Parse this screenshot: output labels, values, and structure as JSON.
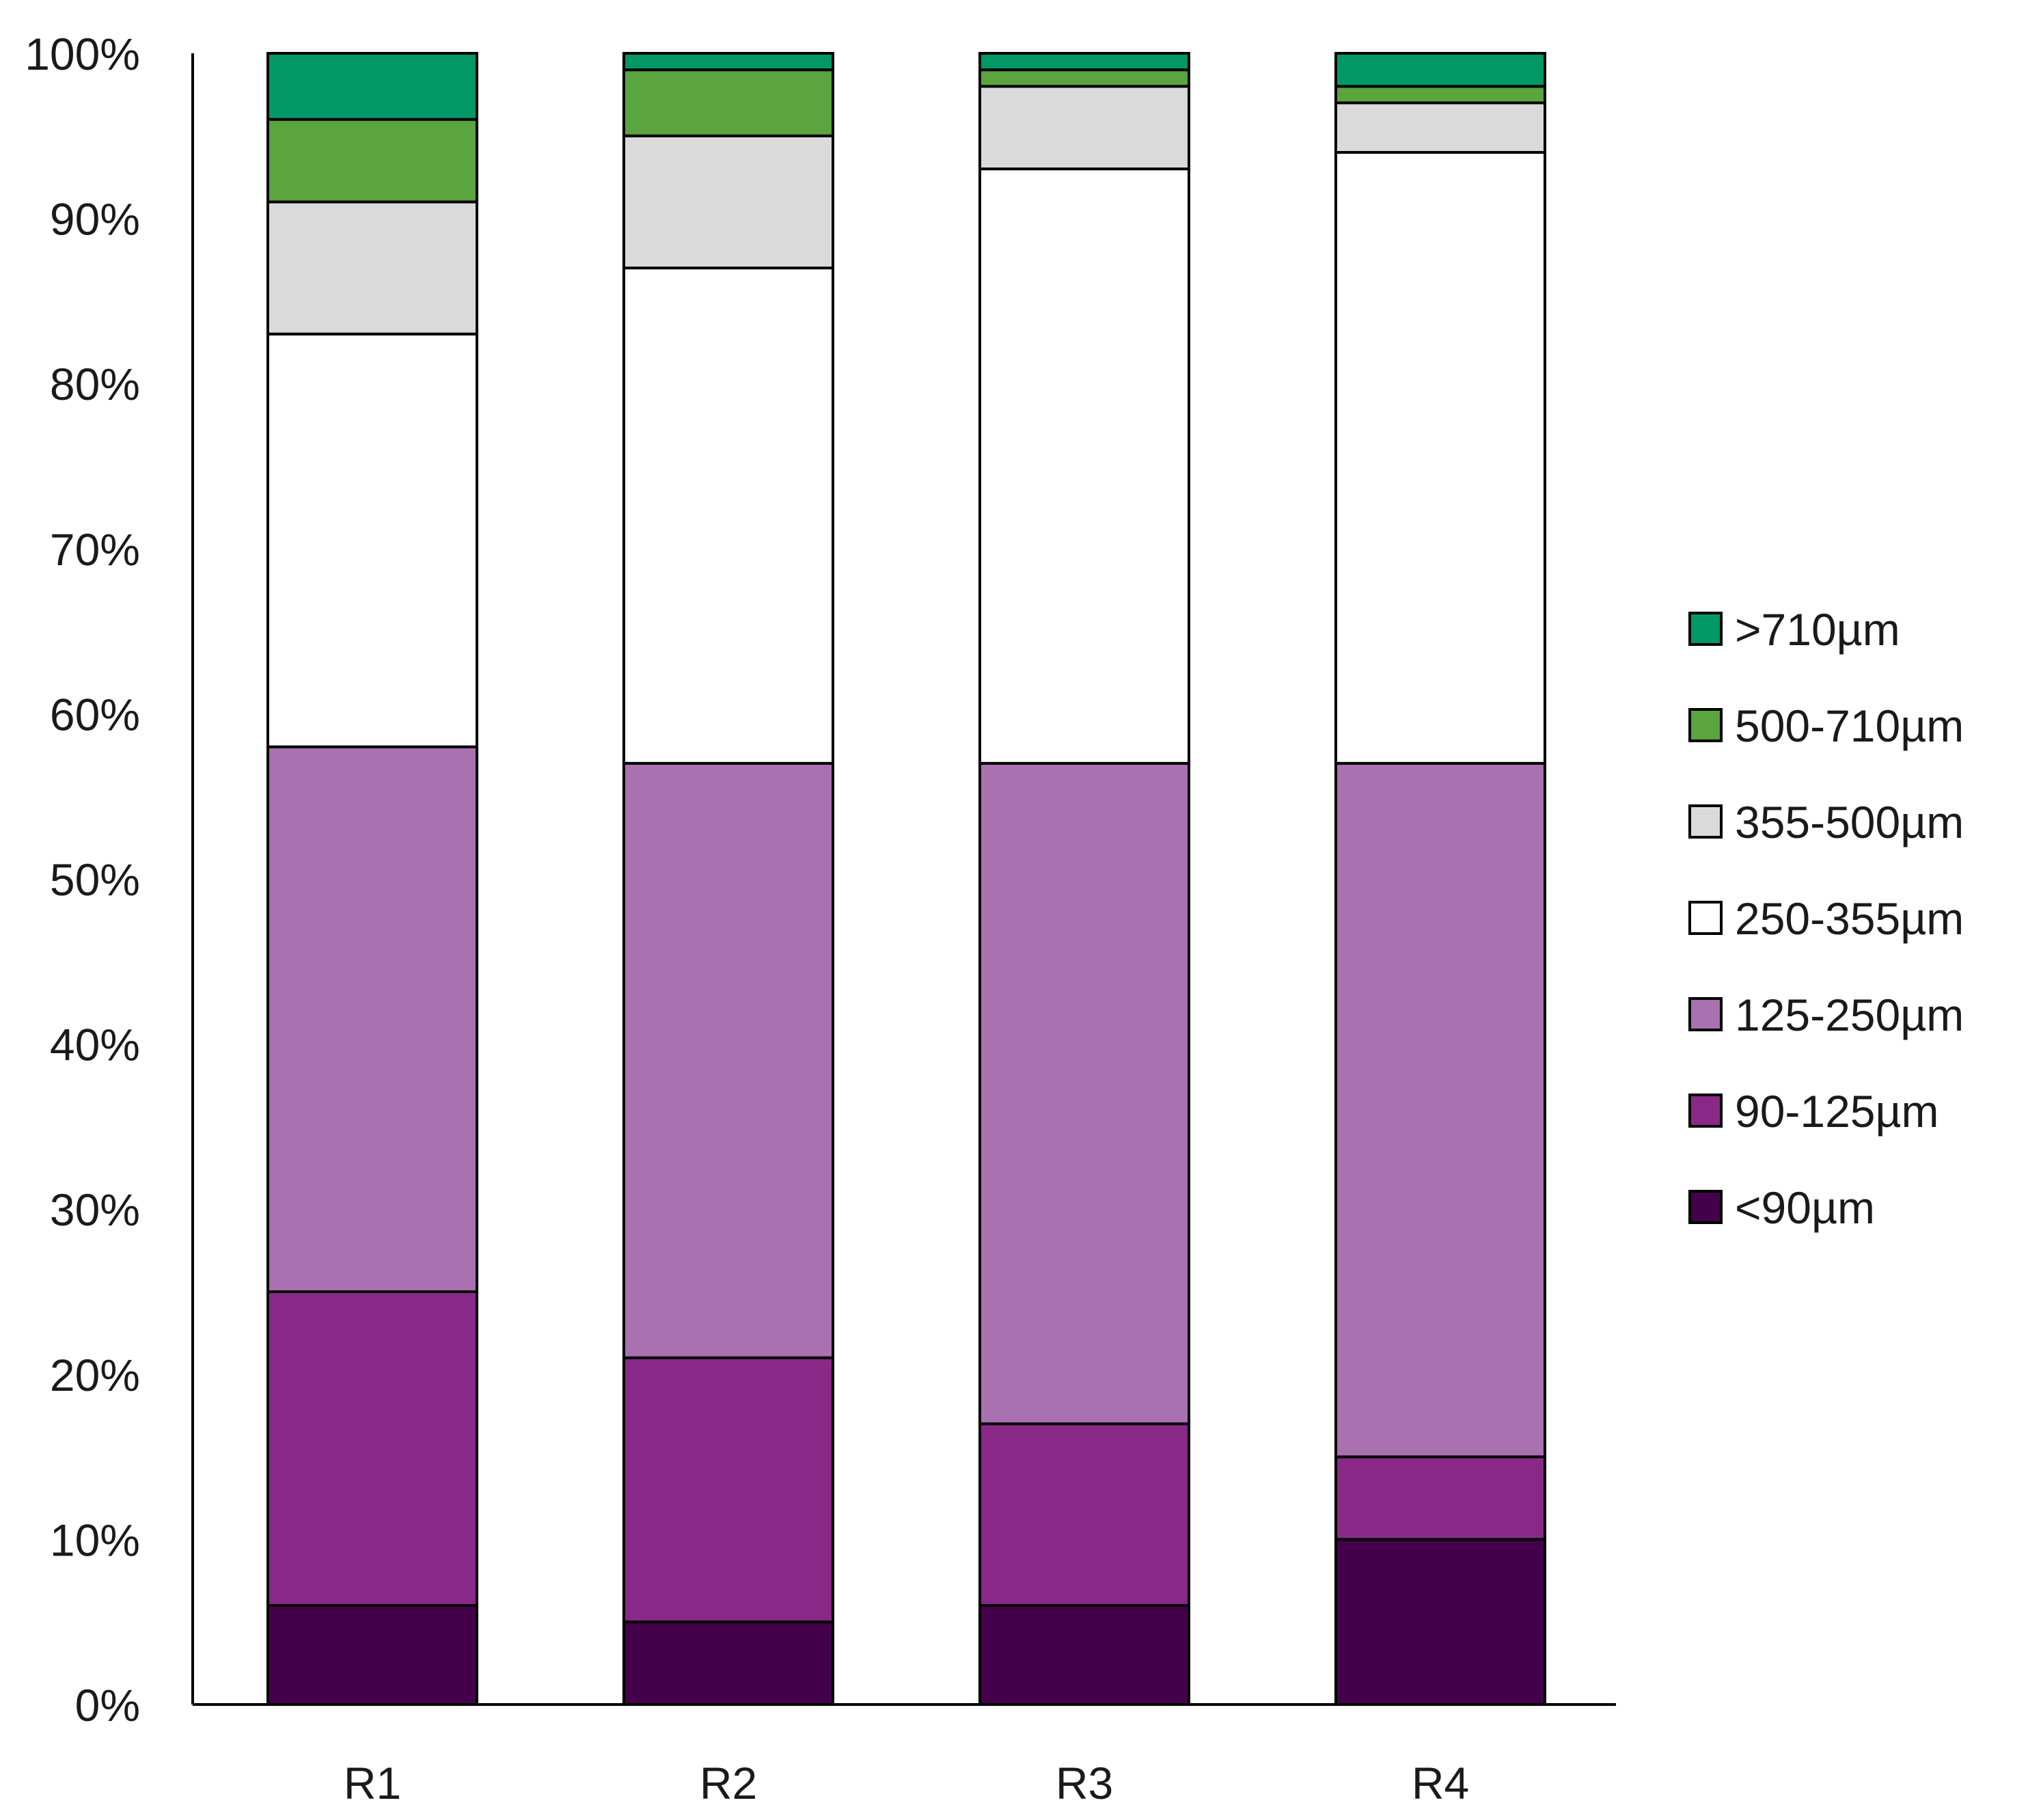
{
  "chart_data": {
    "type": "bar",
    "stacked": true,
    "categories": [
      "R1",
      "R2",
      "R3",
      "R4"
    ],
    "ylim": [
      0,
      100
    ],
    "y_ticks": [
      "0%",
      "10%",
      "20%",
      "30%",
      "40%",
      "50%",
      "60%",
      "70%",
      "80%",
      "90%",
      "100%"
    ],
    "y_tick_values": [
      0,
      10,
      20,
      30,
      40,
      50,
      60,
      70,
      80,
      90,
      100
    ],
    "grid": false,
    "legend_position": "right",
    "series": [
      {
        "name": "<90µm",
        "color": "#44004a",
        "values": [
          6,
          5,
          6,
          10
        ]
      },
      {
        "name": "90-125µm",
        "color": "#8a2888",
        "values": [
          19,
          16,
          11,
          5
        ]
      },
      {
        "name": "125-250µm",
        "color": "#aa71b0",
        "values": [
          33,
          36,
          40,
          42
        ]
      },
      {
        "name": "250-355µm",
        "color": "#ffffff",
        "values": [
          25,
          30,
          36,
          37
        ]
      },
      {
        "name": "355-500µm",
        "color": "#dadada",
        "values": [
          8,
          8,
          5,
          3
        ]
      },
      {
        "name": "500-710µm",
        "color": "#5aa53d",
        "values": [
          5,
          4,
          1,
          1
        ]
      },
      {
        "name": ">710µm",
        "color": "#009966",
        "values": [
          4,
          1,
          1,
          2
        ]
      }
    ]
  }
}
